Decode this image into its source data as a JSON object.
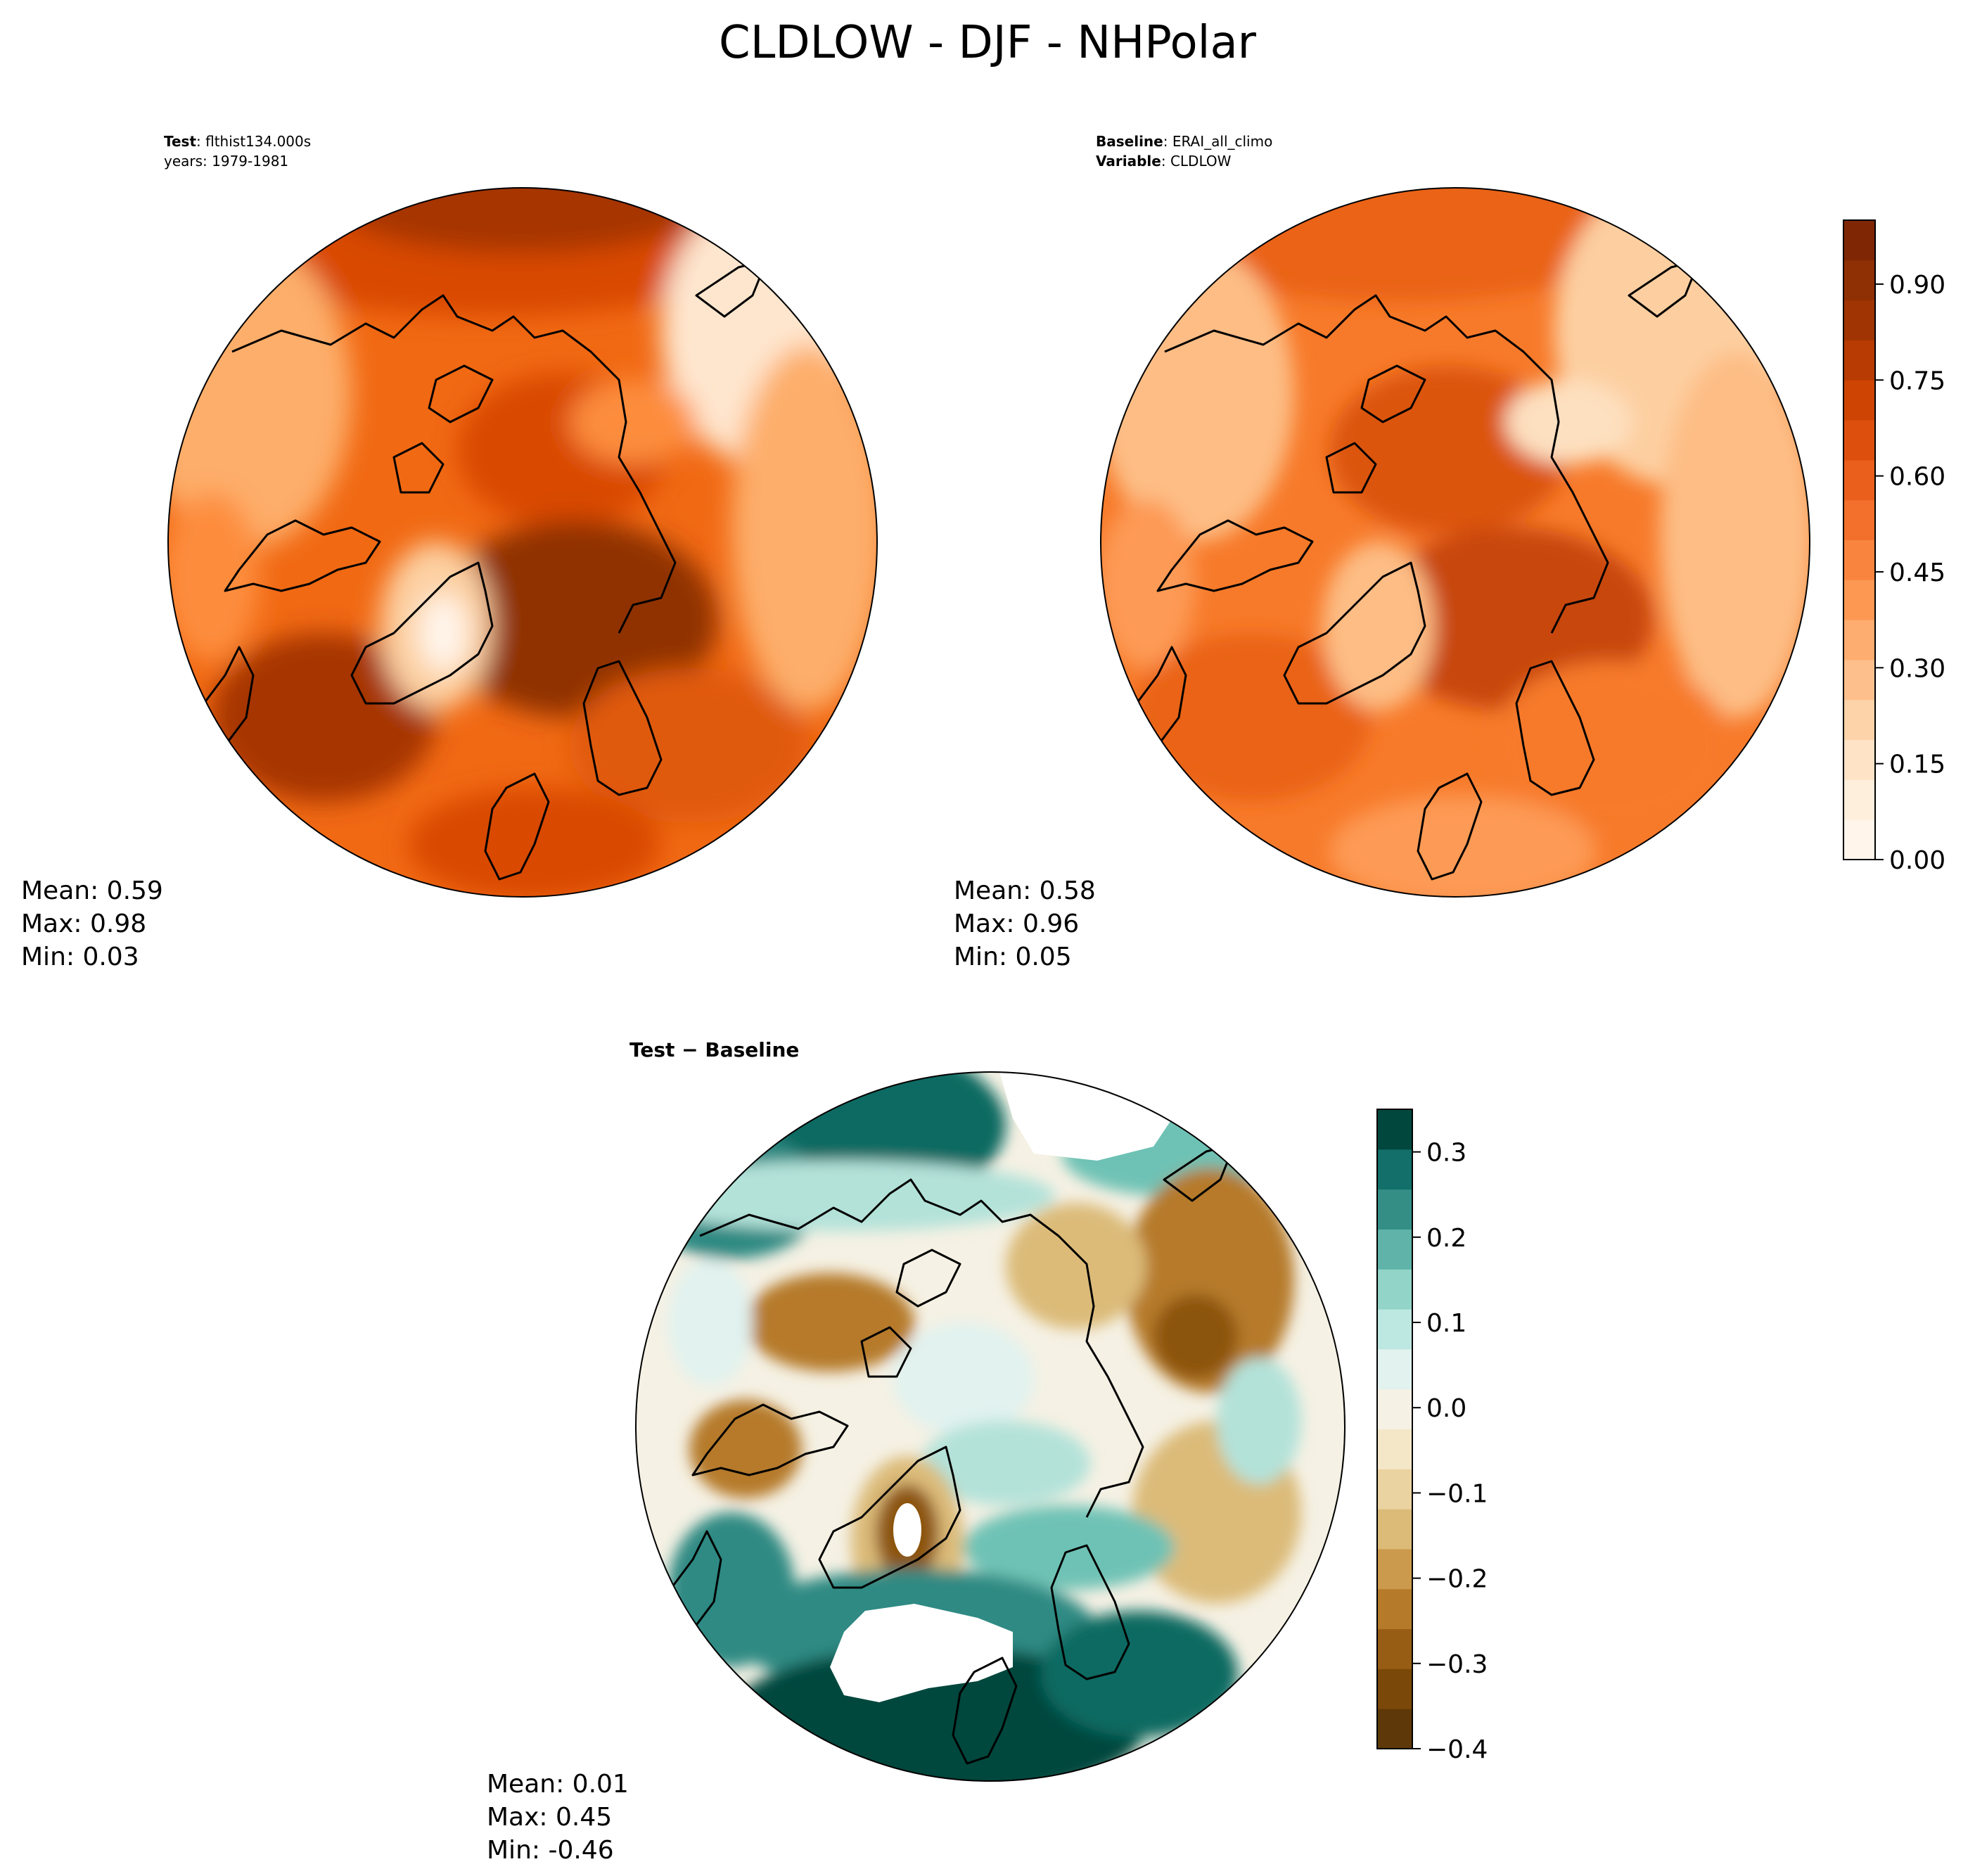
{
  "title": "CLDLOW - DJF - NHPolar",
  "chart_data": [
    {
      "type": "heatmap",
      "name": "test",
      "projection": "north-polar-stereographic",
      "header_lines": [
        {
          "bold": "Test",
          "text": ": flthist134.000s"
        },
        {
          "bold": "",
          "text": "years: 1979-1981"
        }
      ],
      "stats": [
        "Mean:  0.59",
        "Max:  0.98",
        "Min:  0.03"
      ],
      "colorbar": "shared-top"
    },
    {
      "type": "heatmap",
      "name": "baseline",
      "projection": "north-polar-stereographic",
      "header_lines": [
        {
          "bold": "Baseline",
          "text": ": ERAI_all_climo"
        },
        {
          "bold": "Variable",
          "text": ": CLDLOW"
        }
      ],
      "stats": [
        "Mean:  0.58",
        "Max:  0.96",
        "Min:  0.05"
      ],
      "colorbar": "shared-top"
    },
    {
      "type": "heatmap",
      "name": "difference",
      "projection": "north-polar-stereographic",
      "header_lines": [
        {
          "bold": "Test − Baseline",
          "text": ""
        }
      ],
      "stats": [
        "Mean:  0.01",
        "Max:  0.45",
        "Min: -0.46"
      ],
      "colorbar": "diff"
    }
  ],
  "colorbars": {
    "top": {
      "colormap": "Oranges",
      "range": [
        0.0,
        1.0
      ],
      "ticks": [
        0.0,
        0.15,
        0.3,
        0.45,
        0.6,
        0.75,
        0.9
      ],
      "tick_labels": [
        "0.00",
        "0.15",
        "0.30",
        "0.45",
        "0.60",
        "0.75",
        "0.90"
      ],
      "colors": [
        "#fff5eb",
        "#feeedc",
        "#fee3c7",
        "#fdd3a9",
        "#fdc08c",
        "#fdad6f",
        "#fd9853",
        "#f9843e",
        "#f2702b",
        "#e95f1b",
        "#dd4f0c",
        "#ce4403",
        "#b73b02",
        "#a13403",
        "#8f2f04",
        "#7f2704"
      ]
    },
    "diff": {
      "colormap": "BrBG",
      "range": [
        -0.4,
        0.35
      ],
      "ticks": [
        -0.4,
        -0.3,
        -0.2,
        -0.1,
        0.0,
        0.1,
        0.2,
        0.3
      ],
      "tick_labels": [
        "−0.4",
        "−0.3",
        "−0.2",
        "−0.1",
        "0.0",
        "0.1",
        "0.2",
        "0.3"
      ],
      "colors": [
        "#5e3808",
        "#7a4808",
        "#985d15",
        "#b67a2b",
        "#cc9a4d",
        "#dcbb79",
        "#ead3a0",
        "#f4e7c8",
        "#f5f1e4",
        "#e1f2ef",
        "#bde7e1",
        "#92d4c8",
        "#5fb3a8",
        "#348e86",
        "#126f69",
        "#01473e"
      ]
    }
  },
  "colors": {
    "test_field": [
      "#fdae6b",
      "#fd8d3c",
      "#f16913",
      "#e05a0f",
      "#d94801",
      "#c0430a",
      "#a63603",
      "#8f3105",
      "#fee6ce",
      "#fdd0a2"
    ],
    "baseline_field": [
      "#fdbd85",
      "#fd9a55",
      "#f77a2a",
      "#ea6416",
      "#dc5409",
      "#c8470a",
      "#fde0c0",
      "#fdcfa0"
    ],
    "diff_field": [
      "#f5f1e4",
      "#eadbb3",
      "#dcbb79",
      "#b67a2b",
      "#8c5410",
      "#e1f2ef",
      "#b3e2d9",
      "#6ec2b5",
      "#2f8a83",
      "#0a6b62",
      "#01473e",
      "#ffffff"
    ]
  }
}
